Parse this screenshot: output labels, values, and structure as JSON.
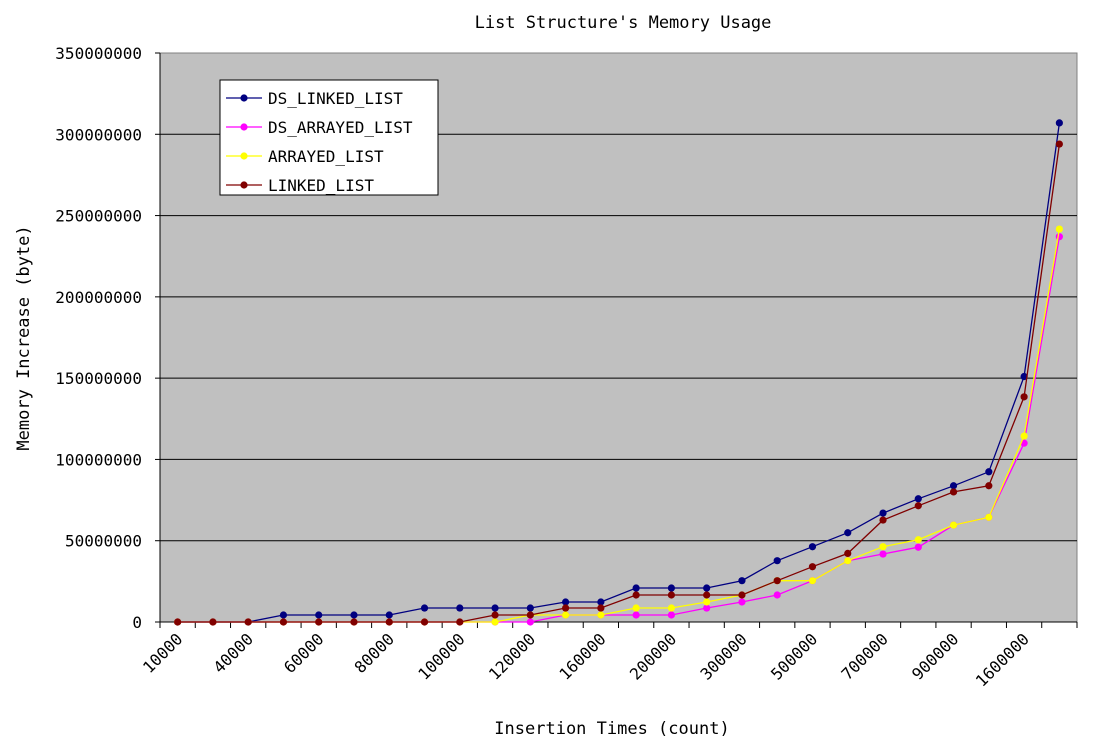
{
  "chart_data": {
    "type": "line",
    "title": "List Structure's Memory Usage",
    "xlabel": "Insertion Times (count)",
    "ylabel": "Memory Increase (byte)",
    "ylim": [
      0,
      350000000
    ],
    "y_ticks": [
      "0",
      "50000000",
      "100000000",
      "150000000",
      "200000000",
      "250000000",
      "300000000",
      "350000000"
    ],
    "y_tick_values": [
      0,
      50000000,
      100000000,
      150000000,
      200000000,
      250000000,
      300000000,
      350000000
    ],
    "category_count": 26,
    "x_tick_labels": [
      "10000",
      "40000",
      "60000",
      "80000",
      "100000",
      "120000",
      "160000",
      "200000",
      "300000",
      "500000",
      "700000",
      "900000",
      "1600000"
    ],
    "x_tick_label_every": 2,
    "grid": true,
    "plot_background": "#C0C0C0",
    "legend_position": "top-left",
    "series": [
      {
        "name": "DS_LINKED_LIST",
        "color": "#000080",
        "values": [
          0,
          0,
          0,
          4300000,
          4300000,
          4300000,
          4300000,
          8600000,
          8600000,
          8600000,
          8600000,
          12300000,
          12300000,
          20900000,
          20900000,
          20900000,
          25400000,
          37700000,
          46300000,
          54900000,
          67000000,
          75800000,
          83800000,
          92400000,
          151000000,
          307000000
        ]
      },
      {
        "name": "DS_ARRAYED_LIST",
        "color": "#FF00FF",
        "values": [
          0,
          0,
          0,
          0,
          0,
          0,
          0,
          0,
          0,
          0,
          0,
          4300000,
          4300000,
          4300000,
          4300000,
          8600000,
          12300000,
          16600000,
          25400000,
          37700000,
          41800000,
          46000000,
          59600000,
          64400000,
          110000000,
          237000000
        ]
      },
      {
        "name": "ARRAYED_LIST",
        "color": "#FFFF00",
        "values": [
          0,
          0,
          0,
          0,
          0,
          0,
          0,
          0,
          0,
          0,
          4300000,
          4300000,
          4300000,
          8600000,
          8600000,
          12300000,
          16600000,
          25400000,
          25400000,
          37700000,
          46300000,
          50600000,
          59600000,
          64400000,
          114400000,
          241700000
        ]
      },
      {
        "name": "LINKED_LIST",
        "color": "#800000",
        "values": [
          0,
          0,
          0,
          0,
          0,
          0,
          0,
          0,
          0,
          4300000,
          4300000,
          8600000,
          8600000,
          16600000,
          16600000,
          16600000,
          16600000,
          25400000,
          34000000,
          42200000,
          62700000,
          71500000,
          80000000,
          83800000,
          138500000,
          294000000
        ]
      }
    ]
  }
}
